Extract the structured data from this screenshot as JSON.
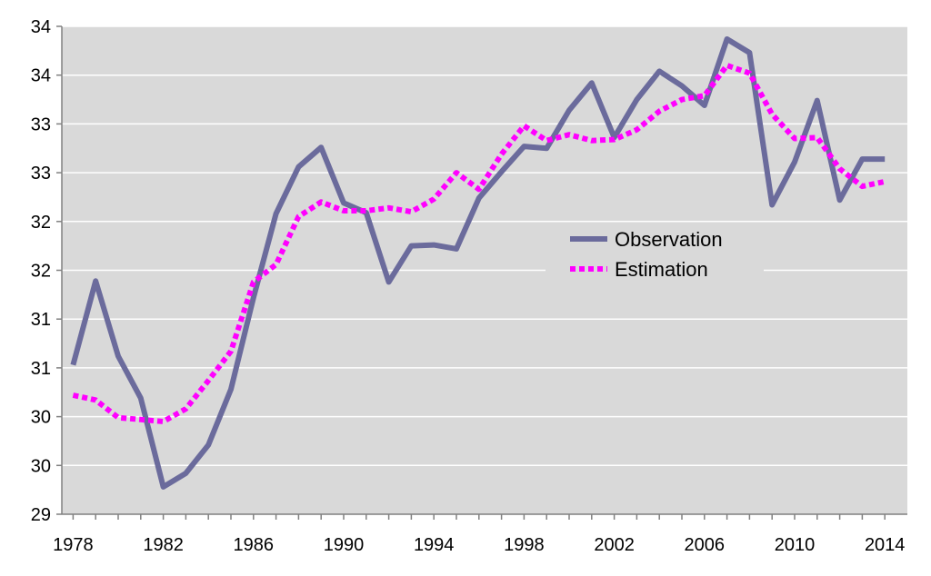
{
  "chart_data": {
    "type": "line",
    "title": "",
    "xlabel": "",
    "ylabel": "",
    "xlim": [
      1977.5,
      2015
    ],
    "ylim": [
      29,
      34
    ],
    "y_ticks": [
      29,
      29.5,
      30,
      30.5,
      31,
      31.5,
      32,
      32.5,
      33,
      33.5,
      34
    ],
    "y_tick_labels": [
      "29",
      "30",
      "30",
      "31",
      "31",
      "32",
      "32",
      "33",
      "33",
      "34",
      "34"
    ],
    "x_ticks": [
      1978,
      1982,
      1986,
      1990,
      1994,
      1998,
      2002,
      2006,
      2010,
      2014
    ],
    "x_tick_labels": [
      "1978",
      "1982",
      "1986",
      "1990",
      "1994",
      "1998",
      "2002",
      "2006",
      "2010",
      "2014"
    ],
    "grid": true,
    "legend_position": "center-right",
    "plot_background": "#d9d9d9",
    "x": [
      1978,
      1979,
      1980,
      1981,
      1982,
      1983,
      1984,
      1985,
      1986,
      1987,
      1988,
      1989,
      1990,
      1991,
      1992,
      1993,
      1994,
      1995,
      1996,
      1997,
      1998,
      1999,
      2000,
      2001,
      2002,
      2003,
      2004,
      2005,
      2006,
      2007,
      2008,
      2009,
      2010,
      2011,
      2012,
      2013,
      2014
    ],
    "series": [
      {
        "name": "Observation",
        "color": "#6b6b9c",
        "style": "solid",
        "values": [
          30.53,
          31.39,
          30.62,
          30.19,
          29.28,
          29.42,
          29.71,
          30.28,
          31.22,
          32.08,
          32.56,
          32.76,
          32.19,
          32.09,
          31.38,
          31.75,
          31.76,
          31.72,
          32.24,
          32.51,
          32.77,
          32.75,
          33.14,
          33.42,
          32.86,
          33.25,
          33.54,
          33.39,
          33.19,
          33.87,
          33.73,
          32.17,
          32.61,
          33.24,
          32.22,
          32.64,
          32.64
        ],
        "values_note": ""
      },
      {
        "name": "Estimation",
        "color": "#ff00ff",
        "style": "dotted",
        "values": [
          30.22,
          30.17,
          29.99,
          29.97,
          29.95,
          30.08,
          30.37,
          30.67,
          31.38,
          31.56,
          32.05,
          32.2,
          32.11,
          32.11,
          32.14,
          32.1,
          32.23,
          32.5,
          32.33,
          32.69,
          32.98,
          32.83,
          32.89,
          32.83,
          32.84,
          32.94,
          33.13,
          33.25,
          33.29,
          33.6,
          33.52,
          33.1,
          32.85,
          32.86,
          32.54,
          32.36,
          32.41
        ]
      }
    ]
  }
}
